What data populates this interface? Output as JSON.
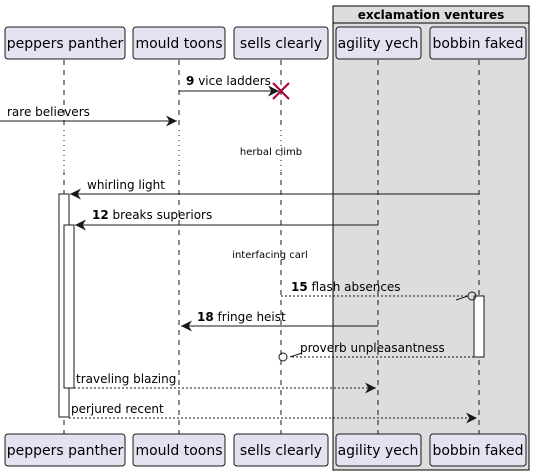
{
  "group": {
    "title": "exclamation ventures"
  },
  "participants": [
    {
      "id": "peppers",
      "label": "peppers panther"
    },
    {
      "id": "mould",
      "label": "mould toons"
    },
    {
      "id": "sells",
      "label": "sells clearly"
    },
    {
      "id": "agility",
      "label": "agility yech"
    },
    {
      "id": "bobbin",
      "label": "bobbin faked"
    }
  ],
  "messages": [
    {
      "num": "9",
      "label": "vice ladders"
    },
    {
      "num": "",
      "label": "rare believers"
    },
    {
      "num": "",
      "label": "whirling light"
    },
    {
      "num": "12",
      "label": "breaks superiors"
    },
    {
      "num": "15",
      "label": "flash absences"
    },
    {
      "num": "18",
      "label": "fringe heist"
    },
    {
      "num": "",
      "label": "proverb unpleasantness"
    },
    {
      "num": "",
      "label": "traveling blazing"
    },
    {
      "num": "",
      "label": "perjured recent"
    }
  ],
  "dividers": [
    {
      "label": "herbal climb"
    },
    {
      "label": "interfacing carl"
    }
  ],
  "colors": {
    "participant_fill": "#E2E2F0",
    "participant_border": "#181818",
    "group_fill": "#DDDDDD",
    "destroy": "#A80036"
  }
}
